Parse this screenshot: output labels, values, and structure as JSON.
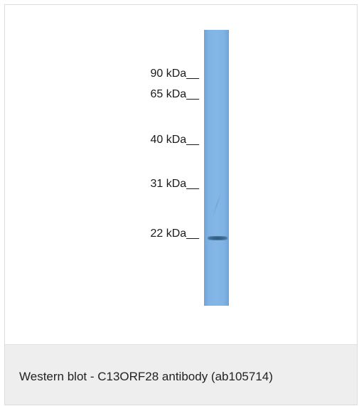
{
  "figure": {
    "markers": [
      {
        "label": "90 kDa__"
      },
      {
        "label": "65 kDa__"
      },
      {
        "label": "40 kDa__"
      },
      {
        "label": "31 kDa__"
      },
      {
        "label": "22 kDa__"
      }
    ],
    "lane_color": "#80b3e4",
    "band_color": "#2c5675"
  },
  "caption": {
    "text": "Western blot - C13ORF28 antibody (ab105714)"
  }
}
